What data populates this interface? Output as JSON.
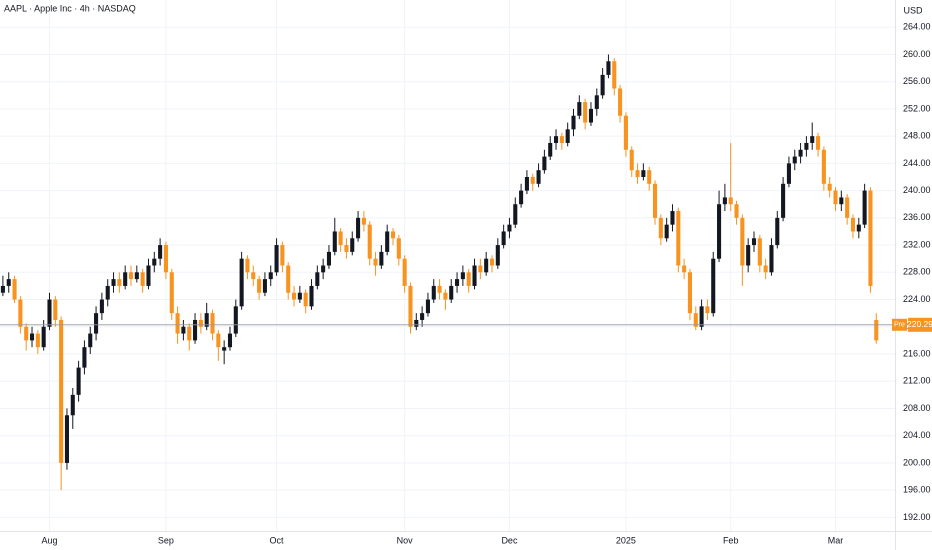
{
  "chart_data": {
    "type": "candlestick",
    "title": "AAPL · Apple Inc · 4h · NASDAQ",
    "currency": "USD",
    "up_color": "#131722",
    "down_color": "#f7931e",
    "grid": true,
    "ylim": [
      190,
      268
    ],
    "yticks": [
      {
        "value": 192,
        "label": "192.00"
      },
      {
        "value": 196,
        "label": "196.00"
      },
      {
        "value": 200,
        "label": "200.00"
      },
      {
        "value": 204,
        "label": "204.00"
      },
      {
        "value": 208,
        "label": "208.00"
      },
      {
        "value": 212,
        "label": "212.00"
      },
      {
        "value": 216,
        "label": "216.00"
      },
      {
        "value": 220,
        "label": "220.00"
      },
      {
        "value": 224,
        "label": "224.00"
      },
      {
        "value": 228,
        "label": "228.00"
      },
      {
        "value": 232,
        "label": "232.00"
      },
      {
        "value": 236,
        "label": "236.00"
      },
      {
        "value": 240,
        "label": "240.00"
      },
      {
        "value": 244,
        "label": "244.00"
      },
      {
        "value": 248,
        "label": "248.00"
      },
      {
        "value": 252,
        "label": "252.00"
      },
      {
        "value": 256,
        "label": "256.00"
      },
      {
        "value": 260,
        "label": "260.00"
      },
      {
        "value": 264,
        "label": "264.00"
      }
    ],
    "xlim": [
      -0.5,
      151.5
    ],
    "xticks": [
      {
        "value": 8,
        "label": "Aug"
      },
      {
        "value": 28,
        "label": "Sep"
      },
      {
        "value": 47,
        "label": "Oct"
      },
      {
        "value": 69,
        "label": "Nov"
      },
      {
        "value": 87,
        "label": "Dec"
      },
      {
        "value": 107,
        "label": "2025"
      },
      {
        "value": 125,
        "label": "Feb"
      },
      {
        "value": 143,
        "label": "Mar"
      }
    ],
    "last_price": {
      "value": 220.29,
      "label": "220.29"
    },
    "session_label": "Pre",
    "candles": [
      [
        225,
        227.5,
        224.5,
        226
      ],
      [
        226,
        228,
        225,
        227
      ],
      [
        227,
        227.5,
        223.5,
        224
      ],
      [
        224,
        224.5,
        219,
        220
      ],
      [
        220,
        220.5,
        216.5,
        218
      ],
      [
        218,
        220,
        217,
        219
      ],
      [
        219,
        219.5,
        216,
        217
      ],
      [
        217,
        221,
        216.5,
        220
      ],
      [
        220,
        225,
        219.5,
        224
      ],
      [
        224,
        224.5,
        220,
        221
      ],
      [
        221,
        221.5,
        196,
        200
      ],
      [
        200,
        208,
        199,
        207
      ],
      [
        207,
        211,
        205,
        210
      ],
      [
        210,
        215,
        209,
        214
      ],
      [
        214,
        218,
        213,
        217
      ],
      [
        217,
        220,
        216,
        219
      ],
      [
        219,
        223,
        218,
        222
      ],
      [
        222,
        225,
        221,
        224
      ],
      [
        224,
        227,
        223,
        226
      ],
      [
        226,
        228,
        225,
        227
      ],
      [
        227,
        228,
        225,
        226
      ],
      [
        226,
        229,
        225.5,
        228
      ],
      [
        228,
        229,
        226,
        227
      ],
      [
        227,
        229,
        226.5,
        228
      ],
      [
        228,
        228.5,
        225,
        226
      ],
      [
        226,
        230,
        225.5,
        229
      ],
      [
        229,
        231,
        228,
        230
      ],
      [
        230,
        233,
        229,
        232
      ],
      [
        232,
        232.5,
        227,
        228
      ],
      [
        228,
        228.5,
        221,
        222
      ],
      [
        222,
        223,
        217.5,
        219
      ],
      [
        219,
        221,
        218,
        220
      ],
      [
        220,
        220.5,
        216.5,
        218
      ],
      [
        218,
        222,
        217.5,
        221
      ],
      [
        221,
        222,
        219,
        220
      ],
      [
        220,
        223.5,
        219.5,
        222
      ],
      [
        222,
        222.5,
        218,
        219
      ],
      [
        219,
        219.5,
        215,
        217
      ],
      [
        216.5,
        218,
        214.5,
        217
      ],
      [
        217,
        220,
        216.5,
        219
      ],
      [
        219,
        224,
        218.5,
        223
      ],
      [
        223,
        231,
        222.5,
        230
      ],
      [
        230,
        230.5,
        227,
        228
      ],
      [
        228,
        229,
        226,
        227
      ],
      [
        227,
        227.5,
        224,
        225
      ],
      [
        225,
        228,
        224.5,
        227
      ],
      [
        227,
        229,
        226,
        228
      ],
      [
        228,
        233,
        227.5,
        232
      ],
      [
        232,
        232.5,
        228,
        229
      ],
      [
        229,
        229.5,
        224,
        225
      ],
      [
        225,
        226,
        223,
        224
      ],
      [
        224,
        226,
        223.5,
        225
      ],
      [
        225,
        225.5,
        222,
        223
      ],
      [
        223,
        227,
        222.5,
        226
      ],
      [
        226,
        229,
        225.5,
        228
      ],
      [
        228,
        230,
        227,
        229
      ],
      [
        229,
        232,
        228.5,
        231
      ],
      [
        231,
        236,
        230.5,
        234
      ],
      [
        234,
        234.5,
        231,
        232
      ],
      [
        232,
        233,
        230,
        231
      ],
      [
        231,
        234,
        230.5,
        233
      ],
      [
        233,
        237,
        232.5,
        236
      ],
      [
        236,
        237,
        234,
        235
      ],
      [
        235,
        235.5,
        229,
        230
      ],
      [
        230,
        231,
        227.5,
        229
      ],
      [
        229,
        232,
        228.5,
        231
      ],
      [
        231,
        235,
        230.5,
        234
      ],
      [
        234,
        234.5,
        232,
        233
      ],
      [
        233,
        233.5,
        229,
        230
      ],
      [
        230,
        230.5,
        225,
        226
      ],
      [
        226,
        226.5,
        219,
        220
      ],
      [
        220,
        222,
        219.5,
        221
      ],
      [
        221,
        223,
        220,
        222
      ],
      [
        222,
        225,
        221.5,
        224
      ],
      [
        224,
        227,
        223.5,
        226
      ],
      [
        226,
        227,
        224,
        225
      ],
      [
        225,
        225.5,
        222.5,
        224
      ],
      [
        224,
        227,
        223.5,
        226
      ],
      [
        226,
        228,
        225,
        227
      ],
      [
        227,
        229,
        226,
        228
      ],
      [
        228,
        228.5,
        225,
        226
      ],
      [
        226,
        230,
        225.5,
        229
      ],
      [
        229,
        230,
        227,
        228
      ],
      [
        228,
        231,
        227.5,
        230
      ],
      [
        230,
        230.5,
        228,
        229
      ],
      [
        229,
        233,
        228.5,
        232
      ],
      [
        232,
        235,
        231.5,
        234
      ],
      [
        234,
        236,
        233,
        235
      ],
      [
        235,
        239,
        234.5,
        238
      ],
      [
        238,
        241,
        237.5,
        240
      ],
      [
        240,
        243,
        239.5,
        242
      ],
      [
        242,
        242.5,
        240,
        241
      ],
      [
        241,
        244,
        240.5,
        243
      ],
      [
        243,
        246,
        242.5,
        245
      ],
      [
        245,
        248,
        244.5,
        247
      ],
      [
        247,
        249,
        246,
        248
      ],
      [
        248,
        248.5,
        246,
        247
      ],
      [
        247,
        250,
        246.5,
        249
      ],
      [
        249,
        252,
        248,
        251
      ],
      [
        251,
        254,
        250.5,
        253
      ],
      [
        253,
        253.5,
        249,
        250
      ],
      [
        250,
        253,
        249.5,
        252
      ],
      [
        252,
        255,
        251,
        254
      ],
      [
        254,
        258,
        253.5,
        257
      ],
      [
        257,
        260,
        256.5,
        259
      ],
      [
        259,
        259.5,
        254,
        255
      ],
      [
        255,
        255.5,
        250,
        251
      ],
      [
        251,
        251.5,
        245,
        246
      ],
      [
        246,
        246.5,
        242,
        243
      ],
      [
        243,
        244,
        241,
        242
      ],
      [
        242,
        244,
        241.5,
        243
      ],
      [
        243,
        243.5,
        240,
        241
      ],
      [
        241,
        241.5,
        235,
        236
      ],
      [
        236,
        236.5,
        232,
        233
      ],
      [
        233,
        236,
        232.5,
        235
      ],
      [
        235,
        238,
        234,
        237
      ],
      [
        237,
        237.5,
        228,
        229
      ],
      [
        229,
        230,
        227,
        228
      ],
      [
        228,
        228.5,
        221,
        222
      ],
      [
        222,
        223,
        219.5,
        220
      ],
      [
        220,
        224,
        219.5,
        223
      ],
      [
        223,
        224,
        221,
        222
      ],
      [
        222,
        231,
        221.5,
        230
      ],
      [
        230,
        240,
        229.5,
        238
      ],
      [
        238,
        241,
        237,
        239
      ],
      [
        239,
        247,
        237,
        238
      ],
      [
        238,
        238.5,
        235,
        236
      ],
      [
        236,
        236.5,
        226,
        229
      ],
      [
        229,
        233,
        228,
        232
      ],
      [
        232,
        234,
        231,
        233
      ],
      [
        233,
        233.5,
        228,
        229
      ],
      [
        229,
        230,
        227,
        228
      ],
      [
        228,
        233,
        227.5,
        232
      ],
      [
        232,
        237,
        231.5,
        236
      ],
      [
        236,
        242,
        235.5,
        241
      ],
      [
        241,
        245,
        240.5,
        244
      ],
      [
        244,
        246,
        243,
        245
      ],
      [
        245,
        247,
        244,
        246
      ],
      [
        246,
        248,
        245,
        247
      ],
      [
        247,
        250,
        246,
        248
      ],
      [
        248,
        248.5,
        245,
        246
      ],
      [
        246,
        246.5,
        240,
        241
      ],
      [
        241,
        242,
        239,
        240
      ],
      [
        240,
        240.5,
        237,
        238
      ],
      [
        238,
        240,
        237,
        239
      ],
      [
        239,
        239.5,
        235,
        236
      ],
      [
        236,
        236.5,
        233,
        234
      ],
      [
        234,
        236,
        233,
        235
      ],
      [
        235,
        241,
        234.5,
        240
      ],
      [
        240,
        240.5,
        225,
        226
      ],
      [
        221,
        222,
        217.5,
        218
      ]
    ]
  }
}
